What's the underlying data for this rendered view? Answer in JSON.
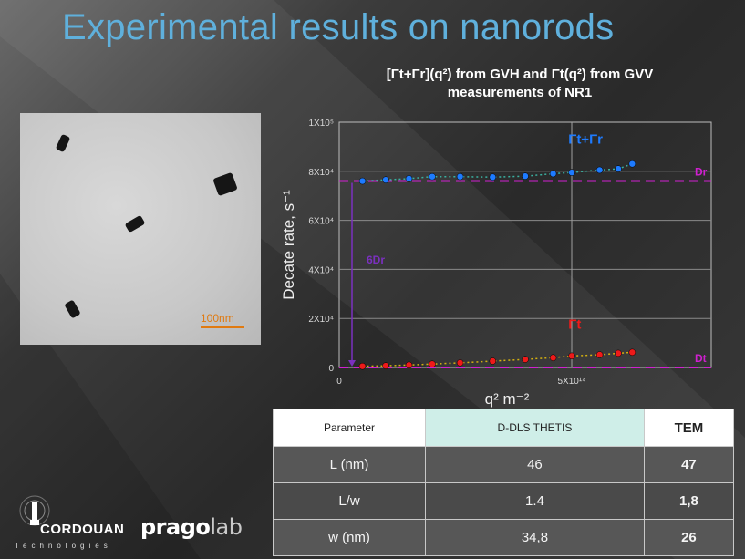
{
  "slide": {
    "title": "Experimental results on nanorods"
  },
  "tem": {
    "scale_label": "100nm"
  },
  "chart_title": {
    "line1": "[Γt+Γr](q²) from GVH and  Γt(q²) from GVV",
    "line2": "measurements of NR1"
  },
  "chart_data": {
    "type": "scatter",
    "xlabel": "q² m⁻²",
    "ylabel": "Decate rate, s⁻¹",
    "xlim": [
      0,
      800000000000000.0
    ],
    "ylim": [
      0,
      100000.0
    ],
    "x_ticks": [
      {
        "value": 0,
        "label": "0"
      },
      {
        "value": 500000000000000.0,
        "label": "5X10¹⁴"
      }
    ],
    "y_ticks": [
      {
        "value": 0,
        "label": "0"
      },
      {
        "value": 20000,
        "label": "2X10⁴"
      },
      {
        "value": 40000,
        "label": "4X10⁴"
      },
      {
        "value": 60000,
        "label": "6X10⁴"
      },
      {
        "value": 80000,
        "label": "8X10⁴"
      },
      {
        "value": 100000,
        "label": "1X10⁵"
      }
    ],
    "series": [
      {
        "name": "Γt+Γr",
        "color": "#1e7bff",
        "x": [
          50000000000000.0,
          100000000000000.0,
          150000000000000.0,
          200000000000000.0,
          260000000000000.0,
          330000000000000.0,
          400000000000000.0,
          460000000000000.0,
          500000000000000.0,
          560000000000000.0,
          600000000000000.0,
          630000000000000.0
        ],
        "y": [
          76000,
          76500,
          77000,
          77800,
          77800,
          77600,
          78000,
          79000,
          79500,
          80500,
          81000,
          83000
        ]
      },
      {
        "name": "Γt",
        "color": "#ee1a1a",
        "x": [
          50000000000000.0,
          100000000000000.0,
          150000000000000.0,
          200000000000000.0,
          260000000000000.0,
          330000000000000.0,
          400000000000000.0,
          460000000000000.0,
          500000000000000.0,
          560000000000000.0,
          600000000000000.0,
          630000000000000.0
        ],
        "y": [
          500,
          700,
          1000,
          1400,
          1900,
          2600,
          3300,
          4000,
          4700,
          5200,
          5800,
          6200
        ]
      }
    ],
    "reference_lines": [
      {
        "label": "Dr",
        "y": 76000,
        "color": "#d020d0"
      },
      {
        "label": "Dt",
        "y": 0,
        "color": "#d020d0"
      }
    ],
    "annotations": [
      {
        "label": "6Dr",
        "color": "#7b30c0"
      }
    ]
  },
  "table": {
    "headers": [
      "Parameter",
      "D-DLS THETIS",
      "TEM"
    ],
    "rows": [
      [
        "L (nm)",
        "46",
        "47"
      ],
      [
        "L/w",
        "1.4",
        "1,8"
      ],
      [
        "w (nm)",
        "34,8",
        "26"
      ]
    ]
  },
  "logos": {
    "cordouan": "CORDOUAN",
    "cordouan_sub": "Technologies",
    "prago": "prago",
    "prago_lab": "lab"
  }
}
